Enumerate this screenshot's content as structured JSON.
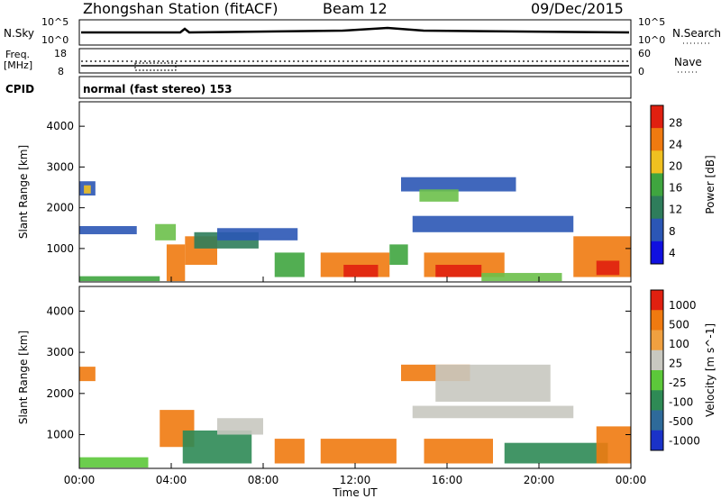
{
  "header": {
    "station": "Zhongshan Station (fitACF)",
    "beam": "Beam 12",
    "date": "09/Dec/2015"
  },
  "noise_panel": {
    "left_label": "N.Sky",
    "right_label": "N.Search",
    "left_ticks": [
      "10^5",
      "10^0"
    ],
    "right_ticks": [
      "10^5",
      "10^0"
    ]
  },
  "freq_panel": {
    "left_label_line1": "Freq.",
    "left_label_line2": "[MHz]",
    "right_label": "Nave",
    "left_ticks": [
      "18",
      "8"
    ],
    "right_ticks": [
      "60",
      "0"
    ]
  },
  "cpid": {
    "label": "CPID",
    "value": "normal (fast stereo) 153"
  },
  "x_axis": {
    "label": "Time UT",
    "ticks": [
      "00:00",
      "04:00",
      "08:00",
      "12:00",
      "16:00",
      "20:00",
      "00:00"
    ]
  },
  "chart_data": [
    {
      "type": "heatmap",
      "name": "power",
      "ylabel": "Slant Range [km]",
      "ylim": [
        180,
        4600
      ],
      "y_ticks": [
        1000,
        2000,
        3000,
        4000
      ],
      "xlim": [
        0,
        24
      ],
      "colorbar": {
        "label": "Power [dB]",
        "ticks": [
          "4",
          "8",
          "12",
          "16",
          "20",
          "24",
          "28"
        ],
        "colors": [
          "#1010e0",
          "#2b56b5",
          "#2e7d5b",
          "#3fa53f",
          "#f0c020",
          "#f07a10",
          "#e02010"
        ]
      },
      "cells": [
        {
          "t0": 0.0,
          "t1": 0.7,
          "r0": 2300,
          "r1": 2650,
          "level": "blue"
        },
        {
          "t0": 0.2,
          "t1": 0.5,
          "r0": 2350,
          "r1": 2550,
          "level": "yellow"
        },
        {
          "t0": 0.0,
          "t1": 2.5,
          "r0": 1350,
          "r1": 1550,
          "level": "blue"
        },
        {
          "t0": 0.0,
          "t1": 3.5,
          "r0": 200,
          "r1": 320,
          "level": "green"
        },
        {
          "t0": 3.3,
          "t1": 4.2,
          "r0": 1200,
          "r1": 1600,
          "level": "lightgreen"
        },
        {
          "t0": 3.8,
          "t1": 4.6,
          "r0": 200,
          "r1": 1100,
          "level": "orange"
        },
        {
          "t0": 4.6,
          "t1": 6.0,
          "r0": 600,
          "r1": 1300,
          "level": "orange"
        },
        {
          "t0": 5.0,
          "t1": 7.8,
          "r0": 1000,
          "r1": 1400,
          "level": "darkgreen"
        },
        {
          "t0": 6.0,
          "t1": 9.5,
          "r0": 1200,
          "r1": 1500,
          "level": "blue"
        },
        {
          "t0": 8.5,
          "t1": 9.8,
          "r0": 300,
          "r1": 900,
          "level": "green"
        },
        {
          "t0": 10.5,
          "t1": 13.5,
          "r0": 300,
          "r1": 900,
          "level": "orange"
        },
        {
          "t0": 11.5,
          "t1": 13.0,
          "r0": 300,
          "r1": 600,
          "level": "red"
        },
        {
          "t0": 13.5,
          "t1": 14.3,
          "r0": 600,
          "r1": 1100,
          "level": "green"
        },
        {
          "t0": 14.0,
          "t1": 19.0,
          "r0": 2400,
          "r1": 2750,
          "level": "blue"
        },
        {
          "t0": 14.8,
          "t1": 16.5,
          "r0": 2150,
          "r1": 2450,
          "level": "lightgreen"
        },
        {
          "t0": 14.5,
          "t1": 21.5,
          "r0": 1400,
          "r1": 1800,
          "level": "blue"
        },
        {
          "t0": 15.0,
          "t1": 18.5,
          "r0": 300,
          "r1": 900,
          "level": "orange"
        },
        {
          "t0": 15.5,
          "t1": 17.5,
          "r0": 300,
          "r1": 600,
          "level": "red"
        },
        {
          "t0": 17.5,
          "t1": 21.0,
          "r0": 200,
          "r1": 400,
          "level": "lightgreen"
        },
        {
          "t0": 21.5,
          "t1": 24.0,
          "r0": 300,
          "r1": 1300,
          "level": "orange"
        },
        {
          "t0": 22.5,
          "t1": 23.5,
          "r0": 350,
          "r1": 700,
          "level": "red"
        }
      ]
    },
    {
      "type": "heatmap",
      "name": "velocity",
      "ylabel": "Slant Range [km]",
      "ylim": [
        180,
        4600
      ],
      "y_ticks": [
        1000,
        2000,
        3000,
        4000
      ],
      "xlim": [
        0,
        24
      ],
      "colorbar": {
        "label": "Velocity [m s^-1]",
        "ticks": [
          "1000",
          "500",
          "100",
          "25",
          "-25",
          "-100",
          "-500",
          "-1000"
        ],
        "colors": [
          "#1a32c8",
          "#2e6a9a",
          "#2e8a55",
          "#5cc83a",
          "#c8c8c0",
          "#f0a040",
          "#f07a10",
          "#e02010"
        ]
      },
      "cells": [
        {
          "t0": 0.0,
          "t1": 0.7,
          "r0": 2300,
          "r1": 2650,
          "level": "orange"
        },
        {
          "t0": 0.0,
          "t1": 3.0,
          "r0": 200,
          "r1": 450,
          "level": "lightgreen"
        },
        {
          "t0": 3.5,
          "t1": 5.0,
          "r0": 700,
          "r1": 1600,
          "level": "orange"
        },
        {
          "t0": 4.5,
          "t1": 7.5,
          "r0": 300,
          "r1": 1100,
          "level": "darkgreen"
        },
        {
          "t0": 6.0,
          "t1": 8.0,
          "r0": 1000,
          "r1": 1400,
          "level": "grey"
        },
        {
          "t0": 8.5,
          "t1": 9.8,
          "r0": 300,
          "r1": 900,
          "level": "orange"
        },
        {
          "t0": 10.5,
          "t1": 13.8,
          "r0": 300,
          "r1": 900,
          "level": "orange"
        },
        {
          "t0": 14.0,
          "t1": 17.0,
          "r0": 2300,
          "r1": 2700,
          "level": "orange"
        },
        {
          "t0": 15.5,
          "t1": 20.5,
          "r0": 1800,
          "r1": 2700,
          "level": "grey"
        },
        {
          "t0": 14.5,
          "t1": 21.5,
          "r0": 1400,
          "r1": 1700,
          "level": "grey"
        },
        {
          "t0": 15.0,
          "t1": 18.0,
          "r0": 300,
          "r1": 900,
          "level": "orange"
        },
        {
          "t0": 18.5,
          "t1": 23.0,
          "r0": 300,
          "r1": 800,
          "level": "darkgreen"
        },
        {
          "t0": 22.5,
          "t1": 24.0,
          "r0": 300,
          "r1": 1200,
          "level": "orange"
        }
      ]
    }
  ]
}
